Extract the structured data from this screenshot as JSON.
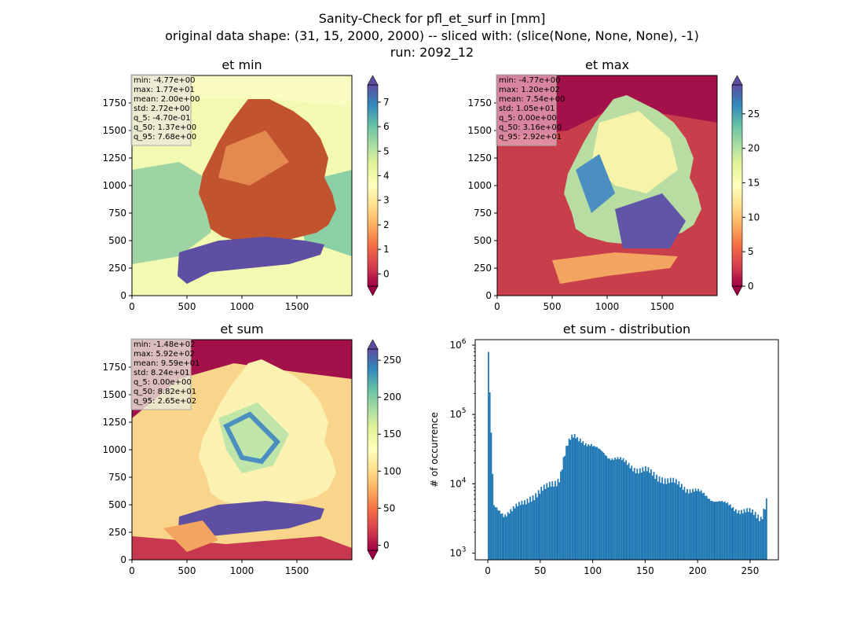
{
  "figure": {
    "title_line1": "Sanity-Check for pfl_et_surf in [mm]",
    "title_line2": "original data shape: (31, 15, 2000, 2000) -- sliced with: (slice(None, None, None), -1)",
    "title_line3": "run: 2092_12"
  },
  "chart_data": [
    {
      "type": "heatmap",
      "title": "et min",
      "colormap": "Spectral",
      "colorbar_extend": "both",
      "xlim": [
        0,
        2000
      ],
      "ylim": [
        0,
        2000
      ],
      "xticks": [
        "0",
        "500",
        "1000",
        "1500"
      ],
      "yticks": [
        "0",
        "250",
        "500",
        "750",
        "1000",
        "1250",
        "1500",
        "1750"
      ],
      "colorbar_range": [
        -0.5,
        7.7
      ],
      "colorbar_ticks": [
        "0",
        "1",
        "2",
        "3",
        "4",
        "5",
        "6",
        "7"
      ],
      "stats": [
        "min: -4.77e+00",
        "max: 1.77e+01",
        "mean: 2.00e+00",
        "std: 2.72e+00",
        "q_5: -4.70e-01",
        "q_50: 1.37e+00",
        "q_95: 7.68e+00"
      ]
    },
    {
      "type": "heatmap",
      "title": "et max",
      "colormap": "Spectral",
      "colorbar_extend": "both",
      "xlim": [
        0,
        2000
      ],
      "ylim": [
        0,
        2000
      ],
      "xticks": [
        "0",
        "500",
        "1000",
        "1500"
      ],
      "yticks": [
        "0",
        "250",
        "500",
        "750",
        "1000",
        "1250",
        "1500",
        "1750"
      ],
      "colorbar_range": [
        0,
        29.2
      ],
      "colorbar_ticks": [
        "0",
        "5",
        "10",
        "15",
        "20",
        "25"
      ],
      "stats": [
        "min: -4.77e+00",
        "max: 1.20e+02",
        "mean: 7.54e+00",
        "std: 1.05e+01",
        "q_5: 0.00e+00",
        "q_50: 3.16e+00",
        "q_95: 2.92e+01"
      ]
    },
    {
      "type": "heatmap",
      "title": "et sum",
      "colormap": "Spectral",
      "colorbar_extend": "both",
      "xlim": [
        0,
        2000
      ],
      "ylim": [
        0,
        2000
      ],
      "xticks": [
        "0",
        "500",
        "1000",
        "1500"
      ],
      "yticks": [
        "0",
        "250",
        "500",
        "750",
        "1000",
        "1250",
        "1500",
        "1750"
      ],
      "colorbar_range": [
        -7,
        265
      ],
      "colorbar_ticks": [
        "0",
        "50",
        "100",
        "150",
        "200",
        "250"
      ],
      "stats": [
        "min: -1.48e+02",
        "max: 5.92e+02",
        "mean: 9.59e+01",
        "std: 8.24e+01",
        "q_5: 0.00e+00",
        "q_50: 8.82e+01",
        "q_95: 2.65e+02"
      ]
    },
    {
      "type": "bar",
      "title": "et sum - distribution",
      "ylabel": "# of occurrence",
      "yscale": "log",
      "xlim": [
        -12,
        277
      ],
      "ylim": [
        800,
        1200000
      ],
      "xticks": [
        "0",
        "50",
        "100",
        "150",
        "200",
        "250"
      ],
      "yticks": [
        "10^3",
        "10^4",
        "10^5",
        "10^6"
      ],
      "bar_color": "#1f77b4",
      "bin_width": 1.325,
      "bins_x": [
        0,
        5,
        10,
        15,
        20,
        25,
        30,
        35,
        40,
        45,
        50,
        55,
        60,
        65,
        68,
        70,
        72,
        75,
        78,
        80,
        83,
        85,
        88,
        90,
        93,
        95,
        98,
        100,
        105,
        110,
        115,
        120,
        125,
        130,
        135,
        140,
        145,
        150,
        155,
        160,
        165,
        170,
        175,
        180,
        185,
        190,
        195,
        200,
        205,
        210,
        215,
        220,
        225,
        230,
        235,
        240,
        245,
        250,
        255,
        260,
        265
      ],
      "bins_y": [
        800000,
        4500,
        3900,
        3600,
        4300,
        4600,
        4800,
        5200,
        6500,
        7200,
        8000,
        8500,
        9800,
        11000,
        13000,
        18000,
        25000,
        35000,
        42000,
        45000,
        47000,
        44000,
        45000,
        43000,
        40000,
        38000,
        36000,
        33000,
        30000,
        28000,
        25000,
        24000,
        22000,
        20000,
        18500,
        17000,
        16000,
        15500,
        14000,
        13000,
        12500,
        11000,
        10500,
        10000,
        9500,
        8500,
        8000,
        7500,
        7000,
        6500,
        6000,
        5500,
        5000,
        4800,
        4500,
        4200,
        4000,
        3800,
        3500,
        3300,
        6000
      ]
    }
  ]
}
